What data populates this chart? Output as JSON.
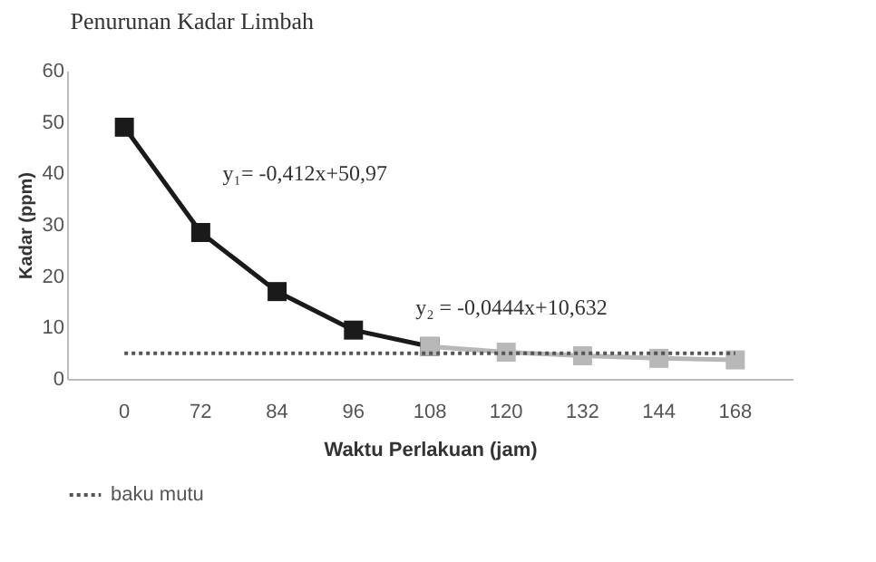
{
  "chart_data": {
    "type": "line",
    "title": "Penurunan Kadar Limbah",
    "xlabel": "Waktu Perlakuan (jam)",
    "ylabel": "Kadar (ppm)",
    "categories": [
      "0",
      "72",
      "84",
      "96",
      "108",
      "120",
      "132",
      "144",
      "168"
    ],
    "series": [
      {
        "color": "#1a1a1a",
        "values": [
          49,
          28.5,
          17,
          9.5,
          6.3,
          null,
          null,
          null,
          null
        ]
      },
      {
        "color": "#b8b8b8",
        "values": [
          null,
          null,
          null,
          null,
          6.3,
          5.2,
          4.5,
          4,
          3.7
        ]
      }
    ],
    "ylim": [
      0,
      60
    ],
    "yticks": [
      0,
      10,
      20,
      30,
      40,
      50,
      60
    ],
    "marker": "square",
    "legend": "bottom left",
    "ref_lines": [
      {
        "axis": "y",
        "value": 5,
        "label": "baku mutu",
        "color": "#555555",
        "line_style": "dotted"
      }
    ],
    "annotations": [
      "y₁= -0,412x+50,97",
      "y₂ = -0,0444x+10,632"
    ]
  }
}
